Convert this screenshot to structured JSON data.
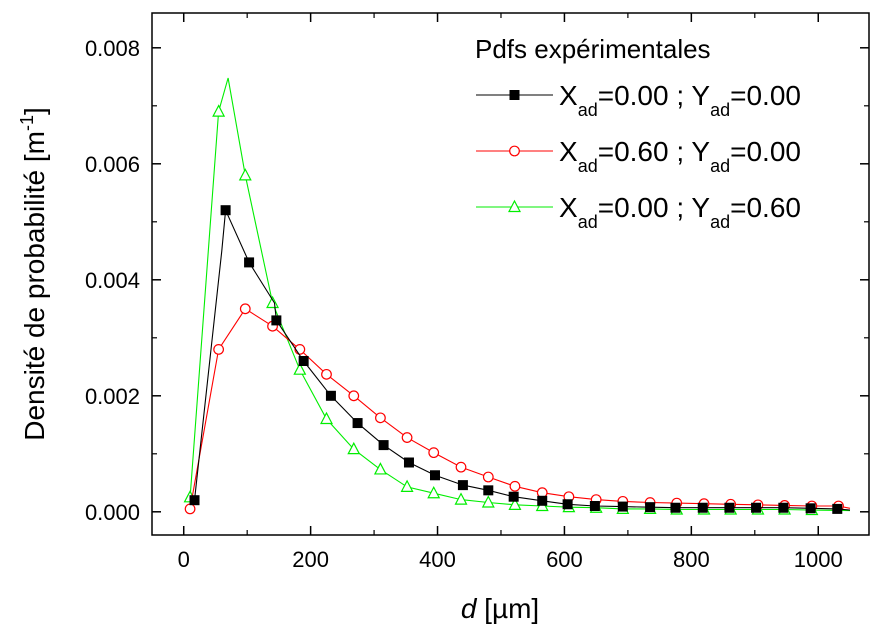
{
  "chart_data": {
    "type": "line",
    "title": "",
    "xlabel_italic": "d",
    "xlabel_unit": " [µm]",
    "ylabel": "Densité de probabilité [m",
    "ylabel_sup": "-1",
    "ylabel_close": "]",
    "xlim": [
      -50,
      1080
    ],
    "ylim": [
      -0.0004,
      0.0086
    ],
    "x_ticks": [
      0,
      200,
      400,
      600,
      800,
      1000
    ],
    "x_tick_labels": [
      "0",
      "200",
      "400",
      "600",
      "800",
      "1000"
    ],
    "y_ticks": [
      0.0,
      0.002,
      0.004,
      0.006,
      0.008
    ],
    "y_tick_labels": [
      "0.000",
      "0.002",
      "0.004",
      "0.006",
      "0.008"
    ],
    "grid": false,
    "legend": {
      "placement": "top-right",
      "title": "Pdfs expérimentales",
      "entries": [
        {
          "parts": [
            [
              "X",
              "n"
            ],
            [
              "ad",
              "s"
            ],
            [
              "=0.00 ; Y",
              "n"
            ],
            [
              "ad",
              "s"
            ],
            [
              "=0.00",
              "n"
            ]
          ]
        },
        {
          "parts": [
            [
              "X",
              "n"
            ],
            [
              "ad",
              "s"
            ],
            [
              "=0.60 ; Y",
              "n"
            ],
            [
              "ad",
              "s"
            ],
            [
              "=0.00",
              "n"
            ]
          ]
        },
        {
          "parts": [
            [
              "X",
              "n"
            ],
            [
              "ad",
              "s"
            ],
            [
              "=0.00 ; Y",
              "n"
            ],
            [
              "ad",
              "s"
            ],
            [
              "=0.60",
              "n"
            ]
          ]
        }
      ]
    },
    "series": [
      {
        "color": "#000000",
        "marker": "square",
        "x": [
          10,
          17,
          60,
          66,
          103,
          143,
          146,
          189,
          232,
          274,
          315,
          355,
          396,
          440,
          480,
          520,
          565,
          605,
          648,
          692,
          735,
          775,
          818,
          860,
          902,
          945,
          988,
          1030,
          1050
        ],
        "y": [
          0.0002,
          0.0002,
          0.0045,
          0.0052,
          0.0043,
          0.0036,
          0.0033,
          0.0026,
          0.002,
          0.00153,
          0.00115,
          0.00085,
          0.00063,
          0.00046,
          0.00037,
          0.00026,
          0.00019,
          0.00013,
          0.0001,
          9e-05,
          8e-05,
          7e-05,
          7e-05,
          7e-05,
          7e-05,
          7e-05,
          6e-05,
          5e-05,
          3e-05
        ],
        "marker_x": [
          17,
          66,
          103,
          146,
          189,
          232,
          274,
          315,
          355,
          396,
          440,
          480,
          520,
          565,
          605,
          648,
          692,
          735,
          775,
          818,
          860,
          902,
          945,
          988,
          1030
        ]
      },
      {
        "color": "#ff0000",
        "marker": "circle",
        "x": [
          10,
          55,
          97,
          140,
          183,
          225,
          268,
          310,
          352,
          394,
          437,
          480,
          522,
          565,
          607,
          650,
          692,
          735,
          777,
          820,
          862,
          905,
          947,
          990,
          1032,
          1050
        ],
        "y": [
          5e-05,
          0.0028,
          0.0035,
          0.0032,
          0.0028,
          0.00237,
          0.002,
          0.00162,
          0.00128,
          0.00102,
          0.00077,
          0.0006,
          0.00044,
          0.00033,
          0.00026,
          0.00021,
          0.00018,
          0.00016,
          0.00015,
          0.00014,
          0.00013,
          0.00012,
          0.00011,
          0.0001,
          0.0001,
          6e-05
        ],
        "marker_x": [
          10,
          55,
          97,
          140,
          183,
          225,
          268,
          310,
          352,
          394,
          437,
          480,
          522,
          565,
          607,
          650,
          692,
          735,
          777,
          820,
          862,
          905,
          947,
          990,
          1032
        ]
      },
      {
        "color": "#00ee00",
        "marker": "triangle",
        "x": [
          10,
          55,
          70,
          97,
          140,
          183,
          225,
          268,
          310,
          352,
          394,
          437,
          480,
          522,
          565,
          607,
          650,
          692,
          735,
          777,
          820,
          862,
          905,
          947,
          990,
          1050
        ],
        "y": [
          0.00025,
          0.0069,
          0.00748,
          0.0058,
          0.0036,
          0.00245,
          0.0016,
          0.00108,
          0.00073,
          0.00043,
          0.00032,
          0.00021,
          0.00016,
          0.00012,
          0.0001,
          8e-05,
          7e-05,
          5e-05,
          5e-05,
          4e-05,
          4e-05,
          4e-05,
          4e-05,
          4e-05,
          3e-05,
          2e-05
        ],
        "marker_x": [
          10,
          55,
          97,
          140,
          183,
          225,
          268,
          310,
          352,
          394,
          437,
          480,
          522,
          565,
          607,
          650,
          692,
          735,
          777,
          820,
          862,
          905,
          947,
          990
        ]
      }
    ]
  }
}
